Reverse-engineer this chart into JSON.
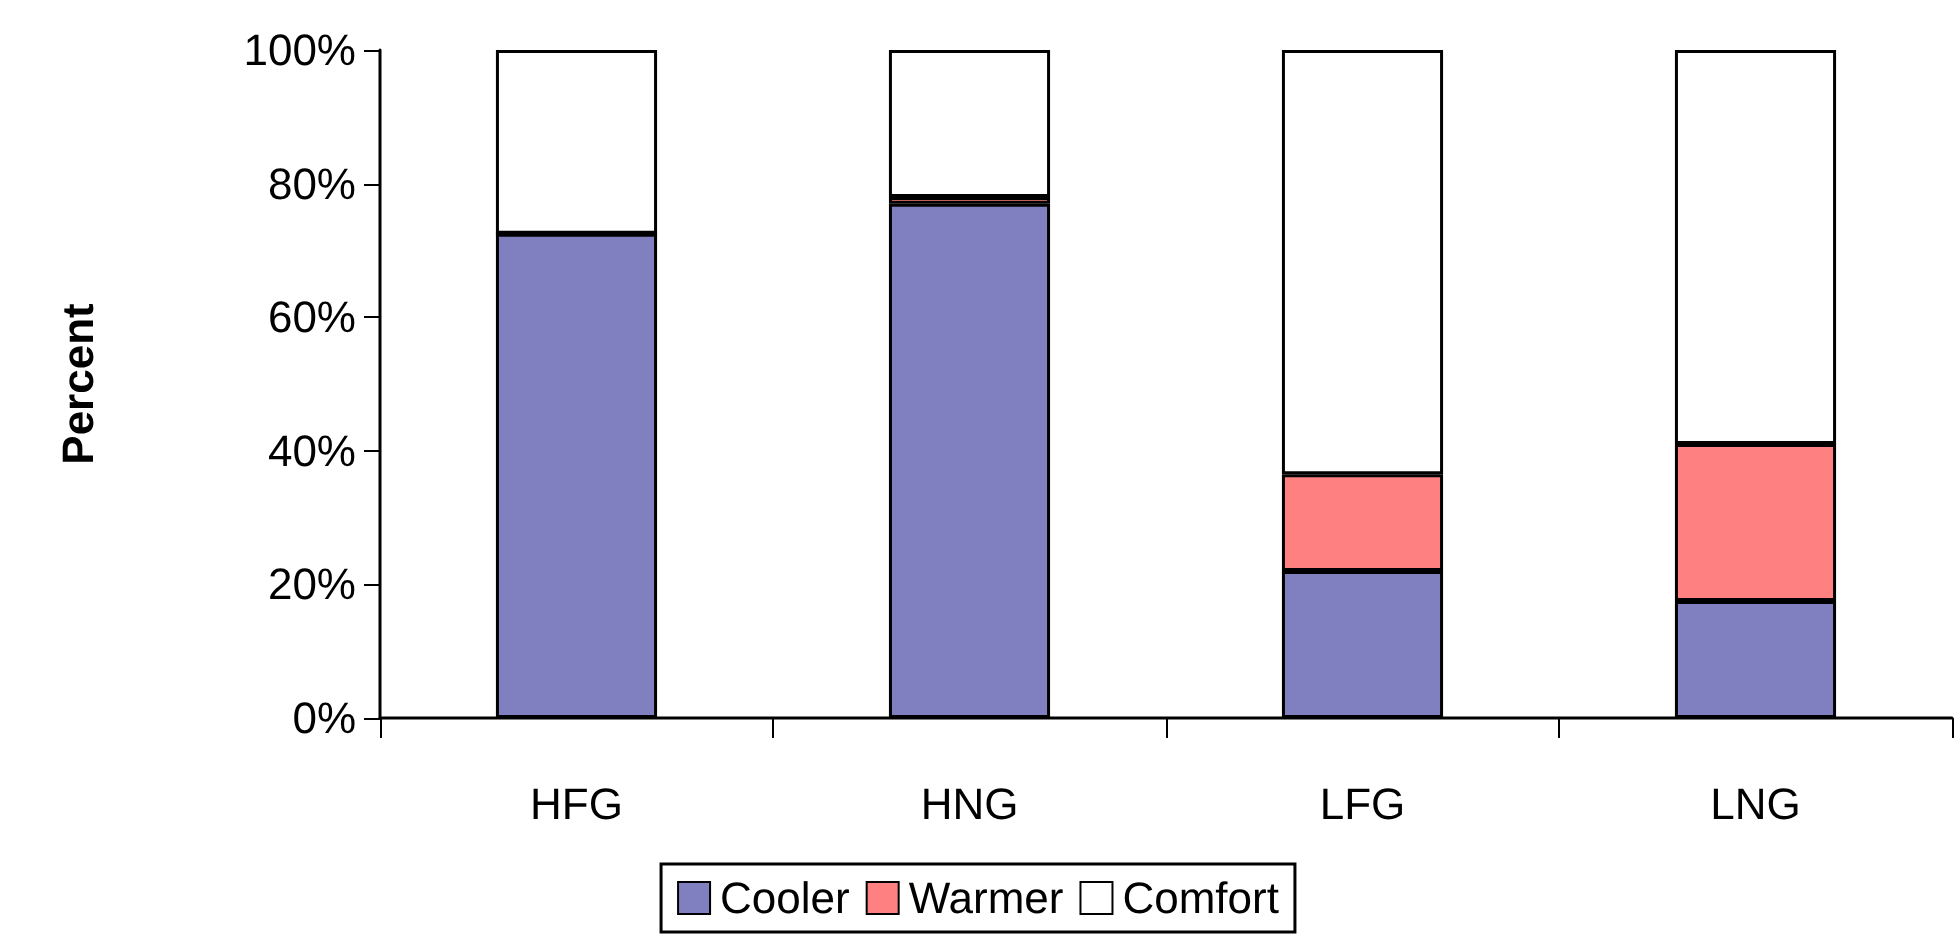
{
  "chart_data": {
    "type": "bar",
    "stacked": true,
    "ylabel": "Percent",
    "categories": [
      "HFG",
      "HNG",
      "LFG",
      "LNG"
    ],
    "series": [
      {
        "name": "Cooler",
        "color": "#8080c0",
        "values": [
          72.5,
          77,
          22,
          17.5
        ]
      },
      {
        "name": "Warmer",
        "color": "#ff8080",
        "values": [
          0,
          1,
          14.5,
          23.5
        ]
      },
      {
        "name": "Comfort",
        "color": "#ffffff",
        "values": [
          27.5,
          22,
          63.5,
          59
        ]
      }
    ],
    "ylim": [
      0,
      100
    ],
    "yticks": [
      {
        "value": 0,
        "label": "0%"
      },
      {
        "value": 20,
        "label": "20%"
      },
      {
        "value": 40,
        "label": "40%"
      },
      {
        "value": 60,
        "label": "60%"
      },
      {
        "value": 80,
        "label": "80%"
      },
      {
        "value": 100,
        "label": "100%"
      }
    ],
    "grid": false,
    "legend": "bottom"
  }
}
